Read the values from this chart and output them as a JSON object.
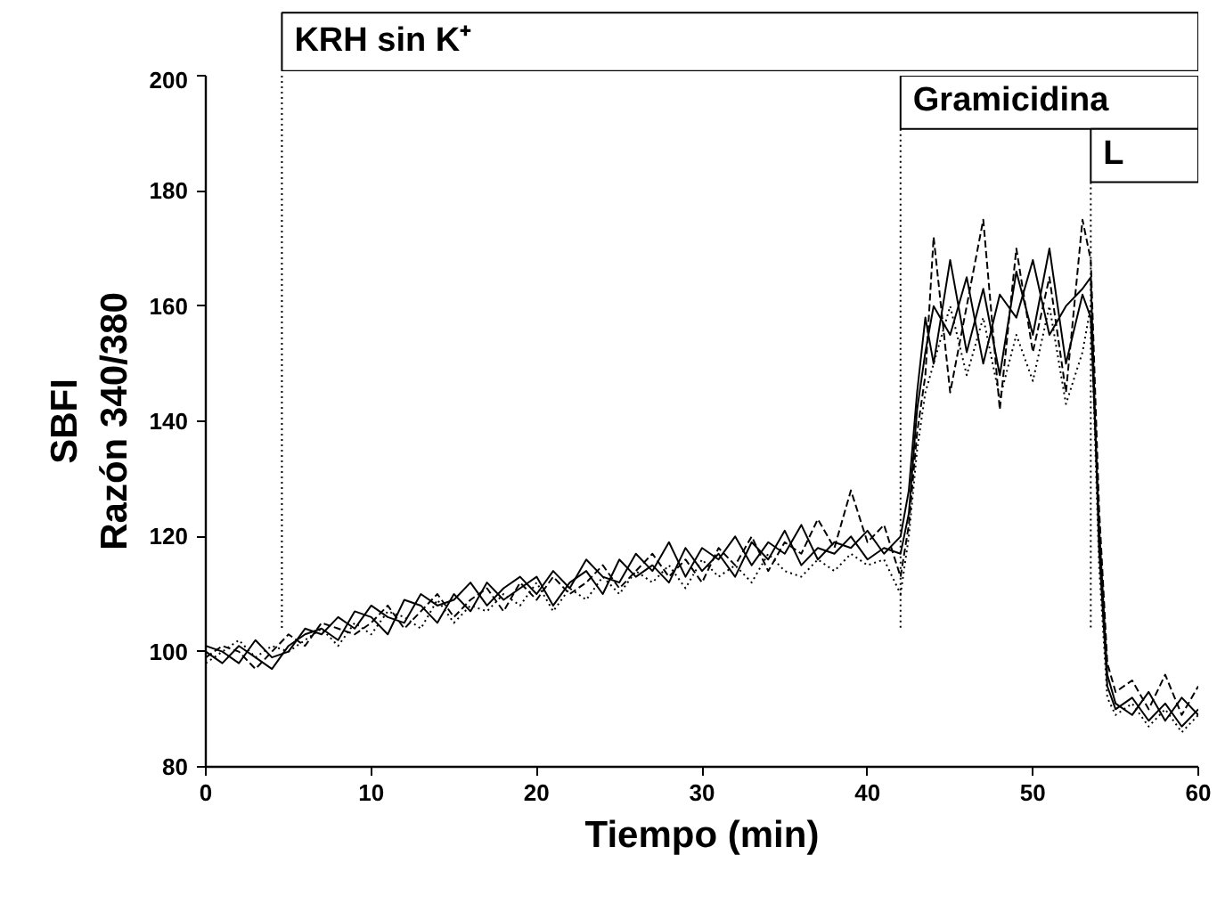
{
  "chart_data": {
    "type": "line",
    "xlabel": "Tiempo (min)",
    "ylabel": "SBFI\nRazón 340/380",
    "x": [
      0,
      1,
      2,
      3,
      4,
      5,
      6,
      7,
      8,
      9,
      10,
      11,
      12,
      13,
      14,
      15,
      16,
      17,
      18,
      19,
      20,
      21,
      22,
      23,
      24,
      25,
      26,
      27,
      28,
      29,
      30,
      31,
      32,
      33,
      34,
      35,
      36,
      37,
      38,
      39,
      40,
      41,
      42,
      42.5,
      43,
      43.5,
      44,
      45,
      46,
      47,
      48,
      49,
      50,
      51,
      52,
      53,
      53.5,
      54,
      54.5,
      55,
      56,
      57,
      58,
      59,
      60
    ],
    "series": [
      {
        "color": "#000000",
        "line_style": "solid",
        "values": [
          100,
          98,
          101,
          99,
          97,
          101,
          103,
          104,
          102,
          107,
          106,
          103,
          109,
          108,
          105,
          110,
          107,
          112,
          109,
          111,
          113,
          108,
          112,
          114,
          110,
          116,
          113,
          115,
          112,
          118,
          114,
          117,
          113,
          119,
          116,
          121,
          115,
          118,
          117,
          120,
          116,
          118,
          117,
          124,
          142,
          152,
          160,
          155,
          165,
          150,
          162,
          158,
          168,
          155,
          160,
          163,
          165,
          118,
          94,
          90,
          92,
          88,
          91,
          87,
          90
        ]
      },
      {
        "color": "#000000",
        "line_style": "solid",
        "values": [
          101,
          100,
          98,
          102,
          99,
          100,
          104,
          103,
          106,
          104,
          108,
          106,
          105,
          110,
          108,
          109,
          112,
          108,
          111,
          113,
          110,
          114,
          111,
          116,
          113,
          112,
          117,
          114,
          119,
          113,
          118,
          116,
          120,
          115,
          119,
          117,
          122,
          116,
          119,
          118,
          121,
          117,
          120,
          128,
          145,
          158,
          150,
          168,
          152,
          163,
          148,
          166,
          155,
          170,
          150,
          162,
          158,
          122,
          96,
          91,
          89,
          93,
          88,
          92,
          89
        ]
      },
      {
        "color": "#000000",
        "line_style": "dashed",
        "values": [
          99,
          101,
          100,
          97,
          100,
          103,
          101,
          105,
          104,
          103,
          105,
          108,
          104,
          107,
          110,
          106,
          109,
          111,
          107,
          112,
          109,
          113,
          110,
          112,
          115,
          111,
          114,
          117,
          113,
          116,
          112,
          118,
          115,
          120,
          114,
          119,
          117,
          123,
          118,
          128,
          119,
          122,
          113,
          122,
          138,
          148,
          172,
          145,
          160,
          175,
          142,
          170,
          152,
          165,
          145,
          175,
          168,
          125,
          98,
          93,
          95,
          90,
          96,
          89,
          94
        ]
      },
      {
        "color": "#000000",
        "line_style": "dotted",
        "values": [
          98,
          100,
          102,
          99,
          101,
          100,
          102,
          104,
          101,
          105,
          103,
          107,
          106,
          104,
          109,
          105,
          108,
          107,
          110,
          108,
          112,
          107,
          111,
          109,
          113,
          110,
          114,
          112,
          115,
          111,
          116,
          113,
          115,
          112,
          117,
          114,
          113,
          116,
          114,
          117,
          115,
          116,
          110,
          120,
          135,
          145,
          150,
          160,
          148,
          158,
          144,
          155,
          147,
          160,
          143,
          152,
          160,
          115,
          92,
          89,
          91,
          87,
          90,
          86,
          89
        ]
      }
    ],
    "xlim": [
      0,
      60
    ],
    "xticks": [
      0,
      10,
      20,
      30,
      40,
      50,
      60
    ],
    "ylim": [
      80,
      200
    ],
    "yticks": [
      80,
      100,
      120,
      140,
      160,
      180,
      200
    ],
    "ref_lines": [
      {
        "axis": "x",
        "value": 4.6,
        "label": "KRH sin K⁺",
        "line_style": "dotted"
      },
      {
        "axis": "x",
        "value": 42,
        "label": "Gramicidina",
        "line_style": "dotted"
      },
      {
        "axis": "x",
        "value": 53.5,
        "label": "L",
        "line_style": "dotted"
      }
    ],
    "grid": false
  }
}
